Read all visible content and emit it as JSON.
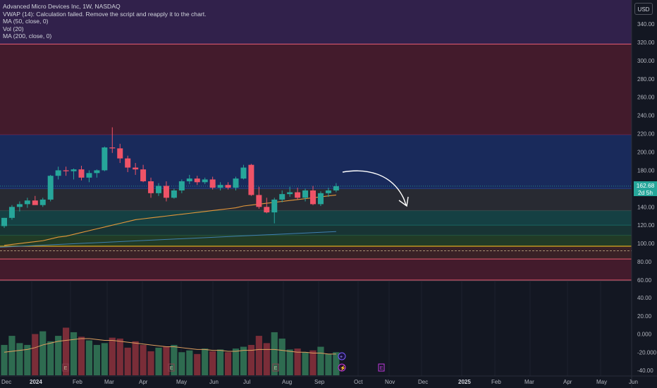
{
  "legend": {
    "title": "Advanced Micro Devices Inc, 1W, NASDAQ",
    "vwap": "VWAP (14): Calculation failed. Remove the script and reapply it to the chart.",
    "ma50": "MA (50, close, 0)",
    "vol": "Vol (20)",
    "ma200": "MA (200, close, 0)"
  },
  "currency": "USD",
  "last_price": {
    "value": "162.68",
    "countdown": "2d 5h"
  },
  "price_axis": [
    "340.00",
    "320.00",
    "300.00",
    "280.00",
    "260.00",
    "240.00",
    "220.00",
    "200.00",
    "180.00",
    "160.00",
    "140.00",
    "120.00",
    "100.00",
    "80.00",
    "60.00"
  ],
  "volume_axis": [
    "40.00",
    "20.00",
    "0.000",
    "-20.000",
    "-40.00"
  ],
  "time_axis": [
    "Dec",
    "2024",
    "Feb",
    "Mar",
    "Apr",
    "May",
    "Jun",
    "Jul",
    "Aug",
    "Sep",
    "Oct",
    "Nov",
    "Dec",
    "2025",
    "Feb",
    "Mar",
    "Apr",
    "May",
    "Jun"
  ],
  "event_markers": {
    "earnings": "E",
    "dividend": "+",
    "split": "⚡"
  },
  "zones": [
    {
      "from": 318,
      "to": 350,
      "color": "#4a2a6e"
    },
    {
      "from": 219,
      "to": 318,
      "color": "#6b1f35"
    },
    {
      "from": 160,
      "to": 219,
      "color": "#1f3b8a"
    },
    {
      "from": 136,
      "to": 160,
      "color": "#3a3a40"
    },
    {
      "from": 120,
      "to": 136,
      "color": "#17625f"
    },
    {
      "from": 109,
      "to": 120,
      "color": "#1d4d44"
    },
    {
      "from": 97,
      "to": 109,
      "color": "#2d5a2a"
    },
    {
      "from": 83,
      "to": 97,
      "color": "#5a2a2a"
    },
    {
      "from": 60,
      "to": 83,
      "color": "#6b1f35"
    }
  ],
  "chart_data": {
    "type": "candlestick",
    "title": "Advanced Micro Devices Inc, 1W, NASDAQ",
    "candles": [
      {
        "o": 119,
        "h": 128,
        "l": 117,
        "c": 128
      },
      {
        "o": 128,
        "h": 142,
        "l": 126,
        "c": 140
      },
      {
        "o": 140,
        "h": 146,
        "l": 135,
        "c": 143
      },
      {
        "o": 143,
        "h": 150,
        "l": 139,
        "c": 147
      },
      {
        "o": 147,
        "h": 152,
        "l": 143,
        "c": 142
      },
      {
        "o": 142,
        "h": 150,
        "l": 140,
        "c": 148
      },
      {
        "o": 148,
        "h": 175,
        "l": 146,
        "c": 174
      },
      {
        "o": 174,
        "h": 184,
        "l": 170,
        "c": 180
      },
      {
        "o": 180,
        "h": 184,
        "l": 174,
        "c": 179
      },
      {
        "o": 179,
        "h": 182,
        "l": 170,
        "c": 181
      },
      {
        "o": 181,
        "h": 185,
        "l": 169,
        "c": 172
      },
      {
        "o": 172,
        "h": 180,
        "l": 167,
        "c": 177
      },
      {
        "o": 177,
        "h": 181,
        "l": 172,
        "c": 180
      },
      {
        "o": 180,
        "h": 206,
        "l": 179,
        "c": 205
      },
      {
        "o": 205,
        "h": 227,
        "l": 199,
        "c": 204
      },
      {
        "o": 204,
        "h": 209,
        "l": 188,
        "c": 193
      },
      {
        "o": 193,
        "h": 196,
        "l": 178,
        "c": 183
      },
      {
        "o": 183,
        "h": 188,
        "l": 175,
        "c": 181
      },
      {
        "o": 181,
        "h": 186,
        "l": 167,
        "c": 168
      },
      {
        "o": 168,
        "h": 172,
        "l": 150,
        "c": 155
      },
      {
        "o": 155,
        "h": 166,
        "l": 152,
        "c": 163
      },
      {
        "o": 163,
        "h": 168,
        "l": 146,
        "c": 150
      },
      {
        "o": 150,
        "h": 160,
        "l": 149,
        "c": 158
      },
      {
        "o": 158,
        "h": 170,
        "l": 155,
        "c": 168
      },
      {
        "o": 168,
        "h": 175,
        "l": 165,
        "c": 171
      },
      {
        "o": 171,
        "h": 174,
        "l": 164,
        "c": 167
      },
      {
        "o": 167,
        "h": 172,
        "l": 165,
        "c": 170
      },
      {
        "o": 170,
        "h": 173,
        "l": 159,
        "c": 161
      },
      {
        "o": 161,
        "h": 167,
        "l": 158,
        "c": 164
      },
      {
        "o": 164,
        "h": 167,
        "l": 159,
        "c": 161
      },
      {
        "o": 161,
        "h": 173,
        "l": 158,
        "c": 171
      },
      {
        "o": 171,
        "h": 186,
        "l": 170,
        "c": 183
      },
      {
        "o": 186,
        "h": 187,
        "l": 152,
        "c": 153
      },
      {
        "o": 153,
        "h": 162,
        "l": 138,
        "c": 140
      },
      {
        "o": 140,
        "h": 150,
        "l": 133,
        "c": 134
      },
      {
        "o": 134,
        "h": 150,
        "l": 122,
        "c": 148
      },
      {
        "o": 148,
        "h": 158,
        "l": 145,
        "c": 154
      },
      {
        "o": 154,
        "h": 162,
        "l": 151,
        "c": 156
      },
      {
        "o": 156,
        "h": 161,
        "l": 148,
        "c": 150
      },
      {
        "o": 150,
        "h": 160,
        "l": 146,
        "c": 158
      },
      {
        "o": 158,
        "h": 163,
        "l": 142,
        "c": 143
      },
      {
        "o": 143,
        "h": 157,
        "l": 141,
        "c": 155
      },
      {
        "o": 155,
        "h": 161,
        "l": 151,
        "c": 158
      },
      {
        "o": 158,
        "h": 166,
        "l": 156,
        "c": 162.68
      }
    ],
    "volume": [
      28,
      38,
      30,
      28,
      40,
      43,
      32,
      38,
      47,
      42,
      37,
      33,
      28,
      30,
      36,
      35,
      25,
      32,
      28,
      21,
      25,
      26,
      28,
      20,
      22,
      18,
      24,
      21,
      23,
      20,
      24,
      26,
      28,
      38,
      30,
      42,
      35,
      23,
      24,
      20,
      22,
      26,
      18,
      20
    ],
    "ma50": [
      98,
      99,
      100,
      101,
      102,
      103,
      105,
      107,
      108,
      110,
      112,
      114,
      116,
      118,
      120,
      122,
      124,
      126,
      127,
      128,
      129,
      130,
      131,
      132,
      133,
      134,
      135,
      136,
      137,
      138,
      139,
      141,
      142,
      143,
      144,
      145,
      146,
      147,
      148,
      149,
      150,
      151,
      152,
      153
    ],
    "vol_ma": [
      20,
      21,
      22,
      23,
      25,
      28,
      30,
      32,
      33,
      34,
      35,
      35,
      34,
      33,
      33,
      32,
      31,
      30,
      29,
      28,
      27,
      26,
      26,
      25,
      24,
      23,
      23,
      22,
      22,
      21,
      21,
      22,
      22,
      23,
      23,
      23,
      22,
      21,
      20,
      20,
      19,
      19,
      18,
      18
    ],
    "price_range": [
      50,
      350
    ],
    "volume_axis_range": [
      -40,
      40
    ],
    "last_price": 162.68
  }
}
